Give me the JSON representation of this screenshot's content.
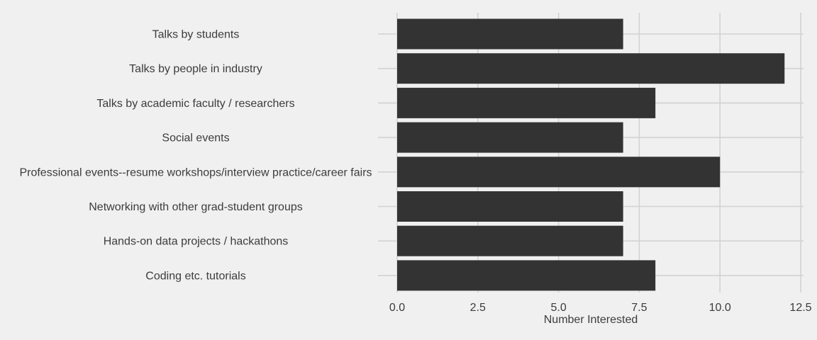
{
  "chart_data": {
    "type": "bar",
    "orientation": "horizontal",
    "categories": [
      "Talks by students",
      "Talks by people in industry",
      "Talks by academic faculty / researchers",
      "Social events",
      "Professional events--resume workshops/interview practice/career fairs",
      "Networking with other grad-student groups",
      "Hands-on data projects / hackathons",
      "Coding etc. tutorials"
    ],
    "values": [
      7,
      12,
      8,
      7,
      10,
      7,
      7,
      8
    ],
    "xlabel": "Number Interested",
    "ylabel": "",
    "xlim": [
      0,
      12.5
    ],
    "ticks": [
      "0.0",
      "2.5",
      "5.0",
      "7.5",
      "10.0",
      "12.5"
    ],
    "tick_values": [
      0,
      2.5,
      5,
      7.5,
      10,
      12.5
    ],
    "grid": true,
    "colors": {
      "background": "#f0f0f0",
      "bar": "#333333",
      "grid": "#d2d2d2",
      "text": "#3c3c3c"
    }
  }
}
